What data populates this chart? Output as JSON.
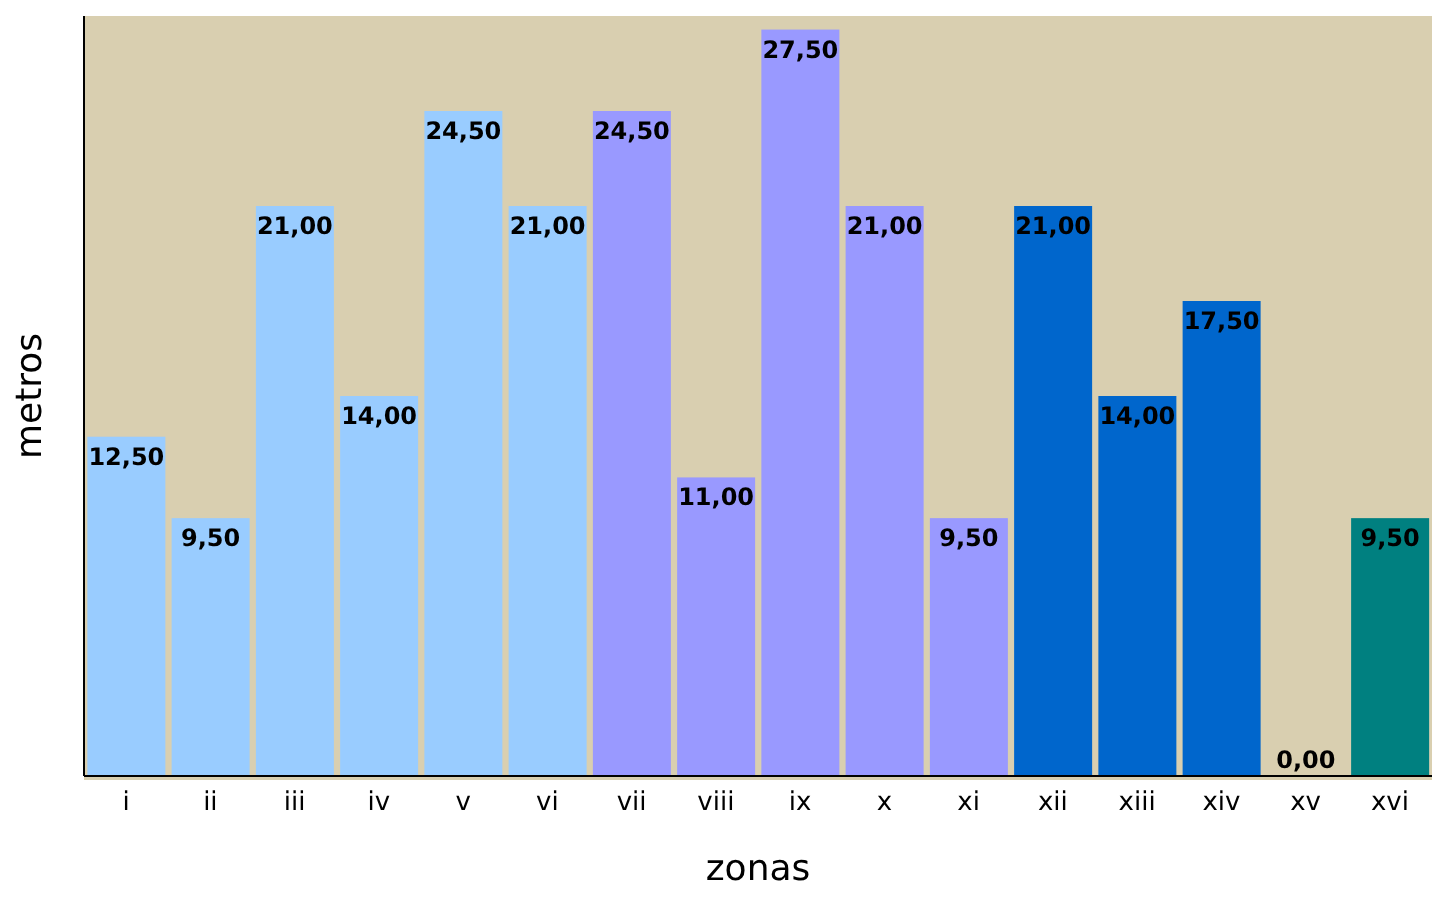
{
  "chart_data": {
    "type": "bar",
    "xlabel": "zonas",
    "ylabel": "metros",
    "categories": [
      "i",
      "ii",
      "iii",
      "iv",
      "v",
      "vi",
      "vii",
      "viii",
      "ix",
      "x",
      "xi",
      "xii",
      "xiii",
      "xiv",
      "xv",
      "xvi"
    ],
    "values": [
      12.5,
      9.5,
      21,
      14,
      24.5,
      21,
      24.5,
      11,
      27.5,
      21,
      9.5,
      21,
      14,
      17.5,
      0,
      9.5
    ],
    "value_labels": [
      "12,50",
      "9,50",
      "21,00",
      "14,00",
      "24,50",
      "21,00",
      "24,50",
      "11,00",
      "27,50",
      "21,00",
      "9,50",
      "21,00",
      "14,00",
      "17,50",
      "0,00",
      "9,50"
    ],
    "colors": [
      "#99ccff",
      "#99ccff",
      "#99ccff",
      "#99ccff",
      "#99ccff",
      "#99ccff",
      "#9999ff",
      "#9999ff",
      "#9999ff",
      "#9999ff",
      "#9999ff",
      "#0066cc",
      "#0066cc",
      "#0066cc",
      "#0066cc",
      "#008080"
    ],
    "tick_labels": "x"
  }
}
